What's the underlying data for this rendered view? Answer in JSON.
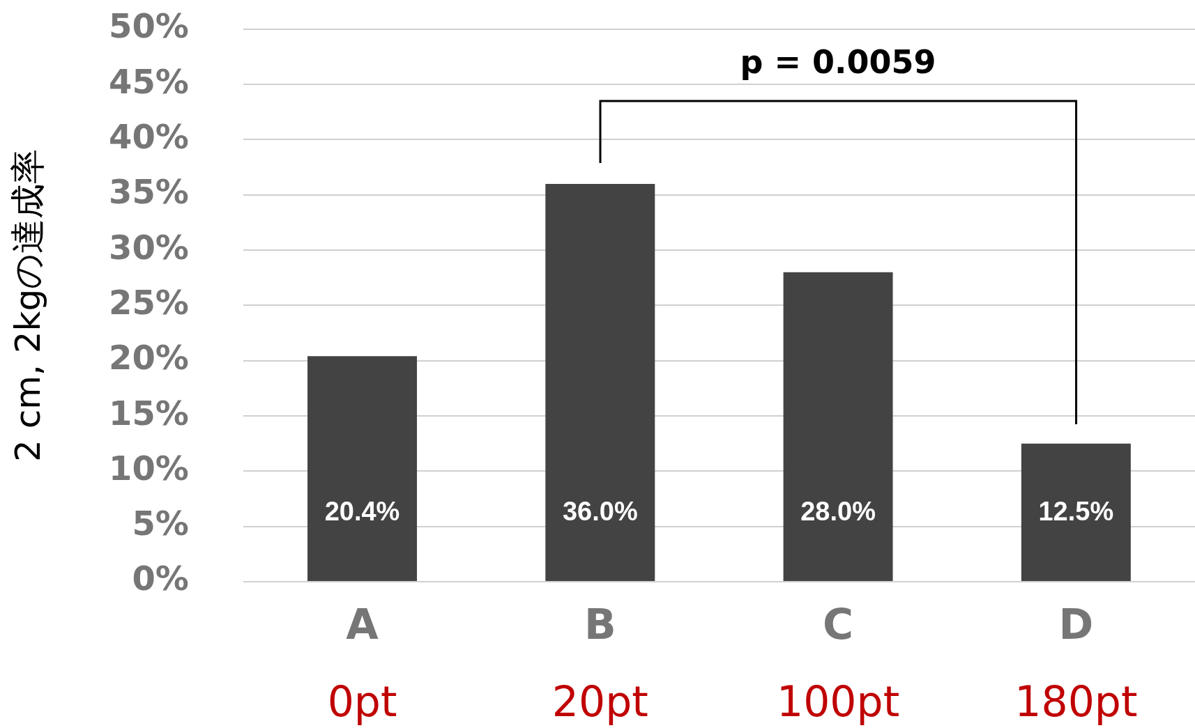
{
  "chart_data": {
    "type": "bar",
    "ylabel": "2 cm, 2kgの達成率",
    "categories": [
      "A",
      "B",
      "C",
      "D"
    ],
    "values": [
      20.4,
      36.0,
      28.0,
      12.5
    ],
    "value_labels": [
      "20.4%",
      "36.0%",
      "28.0%",
      "12.5%"
    ],
    "color": "#434343",
    "ylim": [
      0,
      50
    ],
    "yticks": [
      {
        "value": 0,
        "label": "0%"
      },
      {
        "value": 5,
        "label": "5%"
      },
      {
        "value": 10,
        "label": "10%"
      },
      {
        "value": 15,
        "label": "15%"
      },
      {
        "value": 20,
        "label": "20%"
      },
      {
        "value": 25,
        "label": "25%"
      },
      {
        "value": 30,
        "label": "30%"
      },
      {
        "value": 35,
        "label": "35%"
      },
      {
        "value": 40,
        "label": "40%"
      },
      {
        "value": 45,
        "label": "45%"
      },
      {
        "value": 50,
        "label": "50%"
      }
    ],
    "grid": "y",
    "annotations": [
      "0pt",
      "20pt",
      "100pt",
      "180pt",
      "p = 0.0059"
    ]
  }
}
